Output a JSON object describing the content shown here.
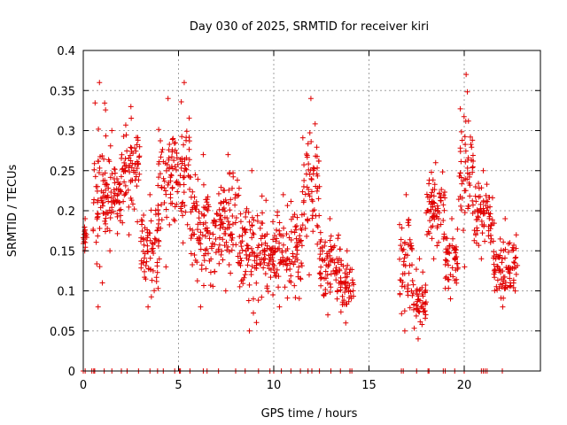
{
  "chart_data": {
    "type": "scatter",
    "title": "Day 030 of 2025, SRMTID for receiver kiri",
    "xlabel": "GPS time / hours",
    "ylabel": "SRMTID / TECUs",
    "xlim": [
      0,
      24.0
    ],
    "ylim": [
      0,
      0.4
    ],
    "grid": true,
    "marker": "+",
    "series_color": "#e00000",
    "frame_color": "#000000",
    "grid_color": "#a0a0a0",
    "x_ticks": [
      0,
      5,
      10,
      15,
      20
    ],
    "x_tick_labels": [
      "0",
      "5",
      "10",
      "15",
      "20"
    ],
    "y_ticks": [
      0,
      0.05,
      0.1,
      0.15,
      0.2,
      0.25,
      0.3,
      0.35,
      0.4
    ],
    "y_tick_labels": [
      "0",
      "0.05",
      "0.1",
      "0.15",
      "0.2",
      "0.25",
      "0.3",
      "0.35",
      "0.4"
    ],
    "series": [
      {
        "name": "SRMTID",
        "clusters": [
          {
            "x": [
              0.0,
              0.2
            ],
            "y": [
              0.15,
              0.19
            ]
          },
          {
            "x": [
              0.5,
              1.2
            ],
            "y": [
              0.08,
              0.36
            ]
          },
          {
            "x": [
              1.0,
              2.0
            ],
            "y": [
              0.15,
              0.3
            ]
          },
          {
            "x": [
              2.0,
              3.0
            ],
            "y": [
              0.17,
              0.33
            ]
          },
          {
            "x": [
              3.0,
              4.0
            ],
            "y": [
              0.08,
              0.22
            ]
          },
          {
            "x": [
              3.9,
              5.0
            ],
            "y": [
              0.13,
              0.34
            ]
          },
          {
            "x": [
              5.0,
              5.6
            ],
            "y": [
              0.16,
              0.36
            ]
          },
          {
            "x": [
              5.6,
              7.0
            ],
            "y": [
              0.08,
              0.27
            ]
          },
          {
            "x": [
              7.0,
              8.2
            ],
            "y": [
              0.1,
              0.27
            ]
          },
          {
            "x": [
              8.2,
              9.5
            ],
            "y": [
              0.05,
              0.25
            ]
          },
          {
            "x": [
              9.5,
              11.5
            ],
            "y": [
              0.08,
              0.22
            ]
          },
          {
            "x": [
              11.5,
              12.4
            ],
            "y": [
              0.12,
              0.34
            ]
          },
          {
            "x": [
              12.4,
              13.5
            ],
            "y": [
              0.07,
              0.19
            ]
          },
          {
            "x": [
              13.5,
              14.2
            ],
            "y": [
              0.06,
              0.15
            ]
          },
          {
            "x": [
              16.6,
              17.3
            ],
            "y": [
              0.05,
              0.22
            ]
          },
          {
            "x": [
              17.3,
              18.0
            ],
            "y": [
              0.04,
              0.14
            ]
          },
          {
            "x": [
              18.0,
              19.0
            ],
            "y": [
              0.14,
              0.26
            ]
          },
          {
            "x": [
              19.0,
              19.7
            ],
            "y": [
              0.09,
              0.19
            ]
          },
          {
            "x": [
              19.7,
              20.5
            ],
            "y": [
              0.13,
              0.37
            ]
          },
          {
            "x": [
              20.5,
              21.5
            ],
            "y": [
              0.14,
              0.25
            ]
          },
          {
            "x": [
              21.5,
              22.8
            ],
            "y": [
              0.08,
              0.19
            ]
          }
        ]
      },
      {
        "name": "zero",
        "x": [
          0.0,
          0.1,
          0.45,
          0.55,
          0.6,
          1.1,
          1.5,
          2.0,
          2.3,
          2.9,
          3.5,
          3.9,
          4.2,
          4.8,
          5.05,
          5.1,
          5.6,
          6.3,
          6.5,
          7.1,
          8.0,
          8.5,
          9.2,
          9.8,
          10.0,
          10.4,
          10.9,
          11.4,
          11.8,
          12.0,
          12.4,
          13.0,
          13.5,
          14.0,
          14.1,
          16.7,
          16.8,
          17.5,
          18.1,
          18.15,
          18.9,
          19.0,
          19.5,
          20.0,
          20.9,
          21.0,
          21.1,
          21.2,
          22.0
        ]
      }
    ]
  }
}
